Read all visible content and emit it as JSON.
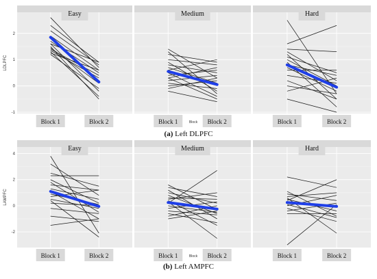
{
  "chart_data": [
    {
      "type": "line",
      "ylabel": "LDLPFC",
      "xlabel": "Block",
      "caption_label": "(a)",
      "caption_text": " Left DLPFC",
      "categories": [
        "Block 1",
        "Block 2"
      ],
      "yticks": [
        -1,
        0,
        1,
        2
      ],
      "ylim": [
        -1.05,
        2.8
      ],
      "grid": true,
      "facets": [
        {
          "index": "1",
          "title": "Easy",
          "mean": [
            1.85,
            0.15
          ],
          "lines": [
            [
              2.6,
              0.7
            ],
            [
              2.3,
              0.9
            ],
            [
              2.1,
              0.8
            ],
            [
              1.9,
              0.6
            ],
            [
              1.8,
              0.2
            ],
            [
              1.7,
              0.5
            ],
            [
              1.6,
              -0.2
            ],
            [
              1.6,
              0.9
            ],
            [
              1.5,
              -0.5
            ],
            [
              1.45,
              0.1
            ],
            [
              1.4,
              0.4
            ],
            [
              1.35,
              0.3
            ],
            [
              1.3,
              -0.4
            ],
            [
              1.25,
              0.6
            ],
            [
              1.2,
              -0.1
            ]
          ]
        },
        {
          "index": "2",
          "title": "Medium",
          "mean": [
            0.55,
            0.05
          ],
          "lines": [
            [
              1.4,
              0.3
            ],
            [
              1.3,
              -0.3
            ],
            [
              1.2,
              0.9
            ],
            [
              1.0,
              0.8
            ],
            [
              0.9,
              -0.2
            ],
            [
              0.8,
              0.5
            ],
            [
              0.7,
              0.1
            ],
            [
              0.6,
              1.0
            ],
            [
              0.5,
              -0.4
            ],
            [
              0.4,
              0.6
            ],
            [
              0.3,
              -0.5
            ],
            [
              0.2,
              0.4
            ],
            [
              0.1,
              -0.1
            ],
            [
              0.0,
              0.2
            ],
            [
              -0.1,
              0.3
            ],
            [
              -0.2,
              -0.6
            ],
            [
              0.3,
              0.7
            ]
          ]
        },
        {
          "index": "3",
          "title": "Hard",
          "mean": [
            0.8,
            -0.05
          ],
          "lines": [
            [
              2.5,
              -0.3
            ],
            [
              1.6,
              2.3
            ],
            [
              1.4,
              1.3
            ],
            [
              1.3,
              0.2
            ],
            [
              1.2,
              -0.5
            ],
            [
              1.1,
              0.5
            ],
            [
              1.0,
              0.0
            ],
            [
              0.9,
              -0.8
            ],
            [
              0.8,
              0.4
            ],
            [
              0.7,
              -0.2
            ],
            [
              0.6,
              0.6
            ],
            [
              0.4,
              0.1
            ],
            [
              0.2,
              -0.5
            ],
            [
              0.0,
              -0.3
            ],
            [
              -0.5,
              -1.0
            ],
            [
              -0.2,
              0.3
            ]
          ]
        }
      ]
    },
    {
      "type": "line",
      "ylabel": "LAMPFC",
      "xlabel": "Block",
      "caption_label": "(b)",
      "caption_text": " Left AMPFC",
      "categories": [
        "Block 1",
        "Block 2"
      ],
      "yticks": [
        -2,
        0,
        2,
        4
      ],
      "ylim": [
        -3.2,
        4.5
      ],
      "grid": true,
      "facets": [
        {
          "index": "4",
          "title": "Easy",
          "mean": [
            1.1,
            -0.05
          ],
          "lines": [
            [
              3.8,
              -2.1
            ],
            [
              3.2,
              0.8
            ],
            [
              2.5,
              1.5
            ],
            [
              2.3,
              2.3
            ],
            [
              2.0,
              0.2
            ],
            [
              1.8,
              -0.5
            ],
            [
              1.6,
              1.2
            ],
            [
              1.3,
              0.5
            ],
            [
              1.1,
              -1.0
            ],
            [
              0.9,
              0.1
            ],
            [
              0.7,
              1.2
            ],
            [
              0.5,
              -0.2
            ],
            [
              0.2,
              0.0
            ],
            [
              -0.2,
              -0.6
            ],
            [
              -0.8,
              -1.2
            ],
            [
              -1.5,
              -1.0
            ],
            [
              0.4,
              -2.4
            ]
          ]
        },
        {
          "index": "5",
          "title": "Medium",
          "mean": [
            0.25,
            -0.25
          ],
          "lines": [
            [
              1.6,
              -0.3
            ],
            [
              1.4,
              0.7
            ],
            [
              1.2,
              -1.0
            ],
            [
              1.0,
              0.2
            ],
            [
              0.8,
              -0.6
            ],
            [
              0.6,
              0.5
            ],
            [
              0.4,
              -1.5
            ],
            [
              0.2,
              2.7
            ],
            [
              0.0,
              -0.5
            ],
            [
              -0.2,
              0.3
            ],
            [
              -0.4,
              -0.7
            ],
            [
              -0.6,
              -1.3
            ],
            [
              -0.8,
              0.0
            ],
            [
              -1.0,
              -0.4
            ],
            [
              0.3,
              -2.5
            ],
            [
              0.5,
              1.0
            ]
          ]
        },
        {
          "index": "6",
          "title": "Hard",
          "mean": [
            0.25,
            -0.05
          ],
          "lines": [
            [
              2.2,
              1.4
            ],
            [
              1.1,
              -0.8
            ],
            [
              0.9,
              0.4
            ],
            [
              0.7,
              1.0
            ],
            [
              0.5,
              -0.4
            ],
            [
              0.3,
              0.0
            ],
            [
              0.1,
              -0.9
            ],
            [
              0.0,
              0.8
            ],
            [
              -0.2,
              -1.2
            ],
            [
              -0.4,
              0.2
            ],
            [
              -0.6,
              -0.6
            ],
            [
              -3.0,
              0.1
            ],
            [
              0.4,
              2.0
            ],
            [
              0.6,
              -2.1
            ]
          ]
        }
      ]
    }
  ]
}
